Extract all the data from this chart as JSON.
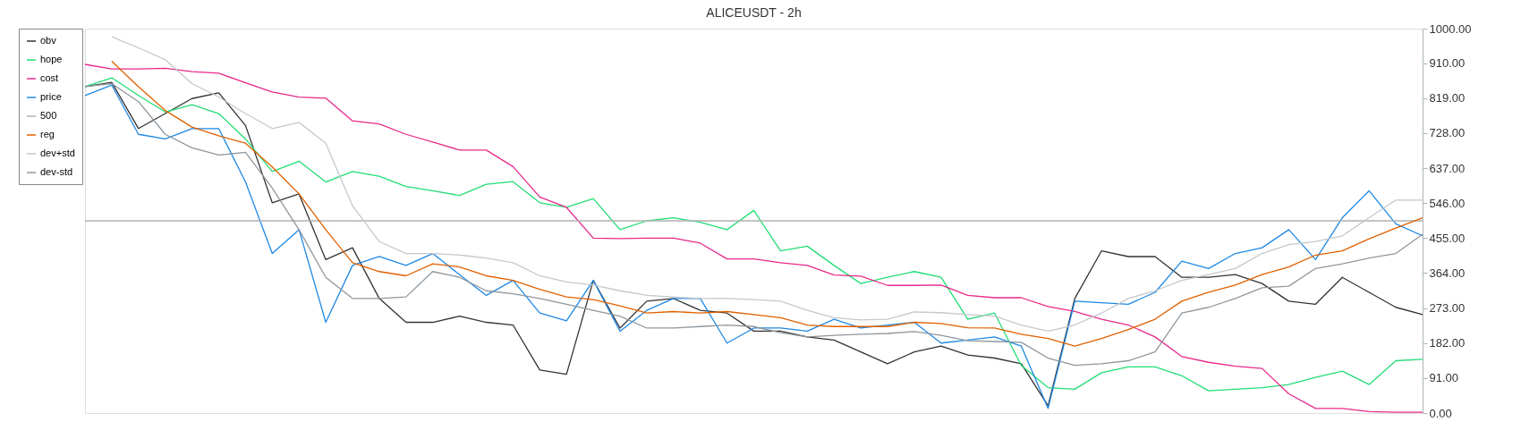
{
  "chart_data": {
    "type": "line",
    "title": "ALICEUSDT - 2h",
    "categories": [
      null,
      null,
      null,
      null,
      null,
      null,
      null,
      null,
      null,
      null,
      null,
      null,
      null,
      null,
      null,
      null,
      null,
      null,
      null,
      null,
      null,
      null,
      null,
      null,
      null,
      null,
      null,
      null,
      null,
      null,
      null,
      null,
      null,
      null,
      null,
      null,
      null,
      null,
      null,
      null,
      null,
      null,
      null,
      null,
      null,
      null,
      null,
      null,
      null,
      null,
      null
    ],
    "series": [
      {
        "name": "obv",
        "color": "#333333",
        "values": [
          849,
          860,
          740,
          779,
          818,
          833,
          748,
          547,
          570,
          399,
          430,
          298,
          236,
          236,
          252,
          236,
          229,
          112,
          101,
          345,
          221,
          291,
          298,
          267,
          260,
          213,
          213,
          198,
          190,
          159,
          128,
          159,
          174,
          151,
          143,
          128,
          19,
          298,
          422,
          407,
          407,
          353,
          353,
          360,
          337,
          291,
          283,
          353,
          314,
          275,
          256
        ]
      },
      {
        "name": "hope",
        "color": "#22dd77",
        "values": [
          849,
          872,
          826,
          783,
          802,
          779,
          713,
          628,
          655,
          601,
          628,
          616,
          589,
          578,
          566,
          595,
          602,
          547,
          535,
          558,
          477,
          500,
          508,
          496,
          477,
          527,
          422,
          434,
          384,
          337,
          353,
          368,
          353,
          244,
          260,
          124,
          66,
          62,
          105,
          120,
          120,
          97,
          58,
          62,
          66,
          74,
          93,
          109,
          74,
          136,
          140
        ]
      },
      {
        "name": "cost",
        "color": "#e8288a",
        "values": [
          907,
          895,
          895,
          897,
          888,
          884,
          859,
          835,
          822,
          819,
          760,
          752,
          725,
          705,
          684,
          684,
          641,
          562,
          535,
          455,
          454,
          455,
          455,
          442,
          401,
          401,
          391,
          384,
          359,
          356,
          332,
          332,
          333,
          306,
          300,
          300,
          277,
          264,
          244,
          229,
          198,
          147,
          132,
          122,
          116,
          50,
          12,
          12,
          4,
          2,
          2
        ]
      },
      {
        "name": "price",
        "color": "#1e88e5",
        "values": [
          826,
          853,
          725,
          713,
          740,
          740,
          601,
          415,
          477,
          236,
          384,
          407,
          384,
          415,
          360,
          306,
          345,
          260,
          240,
          345,
          213,
          267,
          298,
          298,
          182,
          221,
          221,
          213,
          244,
          221,
          229,
          236,
          182,
          190,
          198,
          174,
          12,
          291,
          287,
          283,
          314,
          395,
          376,
          415,
          430,
          477,
          399,
          508,
          578,
          492,
          461
        ]
      },
      {
        "name": "500",
        "color": "#b0b0b0",
        "values": [
          500,
          500,
          500,
          500,
          500,
          500,
          500,
          500,
          500,
          500,
          500,
          500,
          500,
          500,
          500,
          500,
          500,
          500,
          500,
          500,
          500,
          500,
          500,
          500,
          500,
          500,
          500,
          500,
          500,
          500,
          500,
          500,
          500,
          500,
          500,
          500,
          500,
          500,
          500,
          500,
          500,
          500,
          500,
          500,
          500,
          500,
          500,
          500,
          500,
          500,
          500
        ]
      },
      {
        "name": "reg",
        "color": "#e06000",
        "values": [
          null,
          915,
          849,
          787,
          744,
          721,
          702,
          640,
          570,
          477,
          391,
          368,
          357,
          388,
          380,
          357,
          345,
          322,
          302,
          295,
          279,
          260,
          264,
          260,
          264,
          256,
          248,
          229,
          225,
          225,
          225,
          236,
          233,
          222,
          221,
          205,
          194,
          174,
          194,
          217,
          244,
          291,
          314,
          333,
          360,
          380,
          411,
          422,
          453,
          481,
          508
        ]
      },
      {
        "name": "dev+std",
        "color": "#c4c8cc",
        "values": [
          null,
          979,
          950,
          919,
          857,
          822,
          779,
          740,
          756,
          702,
          539,
          446,
          415,
          415,
          411,
          403,
          391,
          357,
          341,
          333,
          318,
          306,
          302,
          298,
          298,
          295,
          291,
          267,
          248,
          242,
          244,
          263,
          261,
          256,
          252,
          229,
          213,
          229,
          260,
          298,
          318,
          345,
          360,
          376,
          415,
          438,
          446,
          461,
          508,
          554,
          554
        ]
      },
      {
        "name": "dev-std",
        "color": "#8e979e",
        "values": [
          849,
          857,
          810,
          725,
          690,
          671,
          678,
          585,
          477,
          353,
          298,
          298,
          302,
          368,
          353,
          318,
          310,
          298,
          283,
          267,
          252,
          221,
          221,
          225,
          229,
          225,
          209,
          198,
          202,
          205,
          207,
          212,
          202,
          188,
          186,
          184,
          143,
          124,
          128,
          136,
          159,
          260,
          275,
          298,
          326,
          330,
          376,
          388,
          403,
          415,
          465
        ]
      }
    ],
    "ylim": [
      0,
      1000
    ],
    "yticks": [
      {
        "value": 0,
        "label": "0.00"
      },
      {
        "value": 91,
        "label": "91.00"
      },
      {
        "value": 182,
        "label": "182.00"
      },
      {
        "value": 273,
        "label": "273.00"
      },
      {
        "value": 364,
        "label": "364.00"
      },
      {
        "value": 455,
        "label": "455.00"
      },
      {
        "value": 546,
        "label": "546.00"
      },
      {
        "value": 637,
        "label": "637.00"
      },
      {
        "value": 728,
        "label": "728.00"
      },
      {
        "value": 819,
        "label": "819.00"
      },
      {
        "value": 910,
        "label": "910.00"
      },
      {
        "value": 1000,
        "label": "1000.00"
      }
    ],
    "tick_labels": "y",
    "grid": false,
    "legend": "top left",
    "marker": "none"
  }
}
